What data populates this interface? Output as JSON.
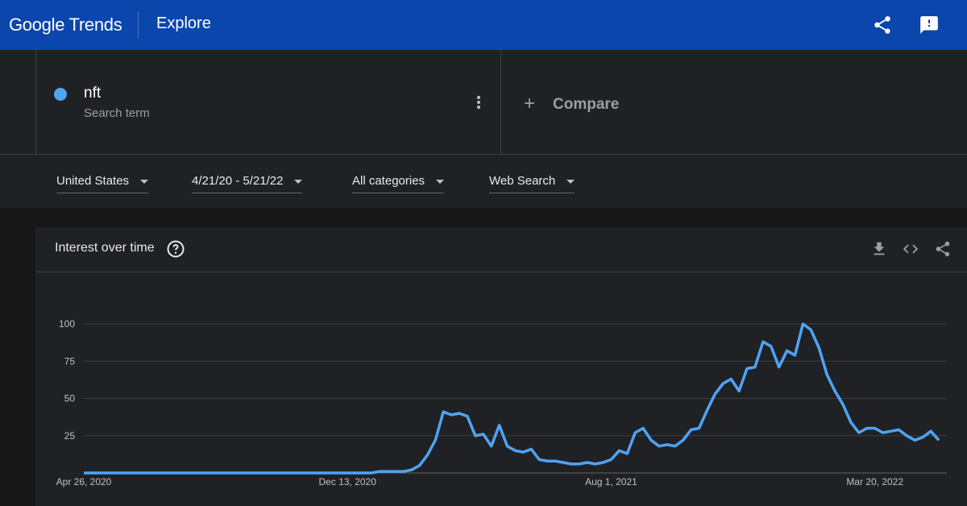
{
  "header": {
    "logo": "Google Trends",
    "section": "Explore"
  },
  "search": {
    "term": "nft",
    "term_type": "Search term",
    "compare": "Compare"
  },
  "filters": [
    "United States",
    "4/21/20 - 5/21/22",
    "All categories",
    "Web Search"
  ],
  "chart_data": {
    "type": "line",
    "title": "Interest over time",
    "categories": [
      "Apr 26, 2020",
      null,
      null,
      null,
      null,
      null,
      null,
      null,
      null,
      null,
      null,
      null,
      null,
      null,
      null,
      null,
      null,
      null,
      null,
      null,
      null,
      null,
      null,
      null,
      null,
      null,
      null,
      null,
      null,
      null,
      null,
      null,
      null,
      "Dec 13, 2020",
      null,
      null,
      null,
      null,
      null,
      null,
      null,
      null,
      null,
      null,
      null,
      null,
      null,
      null,
      null,
      null,
      null,
      null,
      null,
      null,
      null,
      null,
      null,
      null,
      null,
      null,
      null,
      null,
      null,
      null,
      null,
      null,
      "Aug 1, 2021",
      null,
      null,
      null,
      null,
      null,
      null,
      null,
      null,
      null,
      null,
      null,
      null,
      null,
      null,
      null,
      null,
      null,
      null,
      null,
      null,
      null,
      null,
      null,
      null,
      null,
      null,
      null,
      null,
      null,
      null,
      null,
      null,
      "Mar 20, 2022",
      null,
      null,
      null,
      null,
      null,
      null,
      null,
      null
    ],
    "values": [
      0,
      0,
      0,
      0,
      0,
      0,
      0,
      0,
      0,
      0,
      0,
      0,
      0,
      0,
      0,
      0,
      0,
      0,
      0,
      0,
      0,
      0,
      0,
      0,
      0,
      0,
      0,
      0,
      0,
      0,
      0,
      0,
      0,
      0,
      0,
      0,
      0,
      1,
      1,
      1,
      1,
      2,
      5,
      12,
      22,
      41,
      39,
      40,
      38,
      25,
      26,
      18,
      32,
      18,
      15,
      14,
      16,
      9,
      8,
      8,
      7,
      6,
      6,
      7,
      6,
      7,
      9,
      15,
      13,
      27,
      30,
      22,
      18,
      19,
      18,
      22,
      29,
      30,
      42,
      53,
      60,
      63,
      55,
      70,
      71,
      88,
      85,
      71,
      82,
      79,
      100,
      96,
      84,
      66,
      55,
      46,
      34,
      27,
      30,
      30,
      27,
      28,
      29,
      25,
      22,
      24,
      28,
      22
    ],
    "color": "#4ea4f5",
    "ylim": [
      0,
      100
    ],
    "yticks": [
      25,
      50,
      75,
      100
    ],
    "grid": true
  }
}
